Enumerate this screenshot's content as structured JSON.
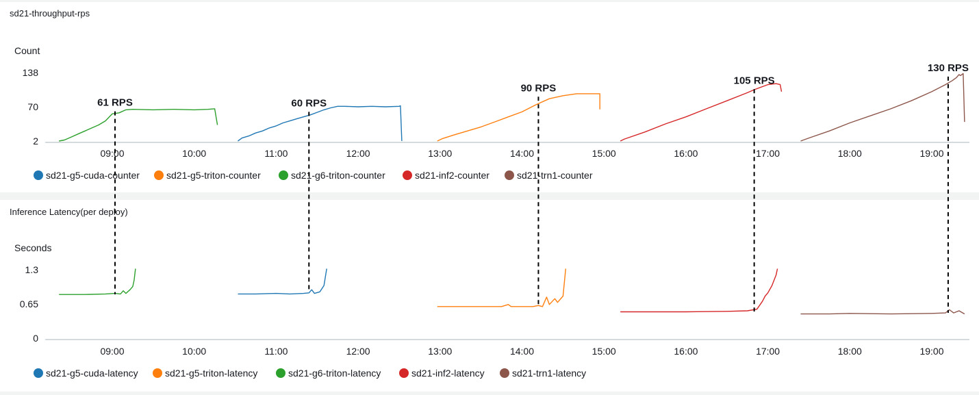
{
  "colors": {
    "sd21-g5-cuda": "#1f77b4",
    "sd21-g5-triton": "#ff7f0e",
    "sd21-g6-triton": "#2ca02c",
    "sd21-inf2": "#d62728",
    "sd21-trn1": "#8c564b"
  },
  "chart_data": [
    {
      "type": "line",
      "title": "sd21-throughput-rps",
      "ylabel": "Count",
      "yticks": [
        "138",
        "70",
        "2"
      ],
      "ylim": [
        2,
        138
      ],
      "xticks": [
        "09:00",
        "10:00",
        "11:00",
        "12:00",
        "13:00",
        "14:00",
        "15:00",
        "16:00",
        "17:00",
        "18:00",
        "19:00"
      ],
      "xlim": [
        "08:21",
        "19:24"
      ],
      "legend_position": "bottom-left",
      "grid": false,
      "series": [
        {
          "name": "sd21-g5-cuda-counter",
          "color_key": "sd21-g5-cuda",
          "points": [
            [
              "10:32",
              2
            ],
            [
              "10:35",
              8
            ],
            [
              "10:40",
              12
            ],
            [
              "10:45",
              18
            ],
            [
              "10:50",
              22
            ],
            [
              "10:55",
              28
            ],
            [
              "11:00",
              32
            ],
            [
              "11:05",
              38
            ],
            [
              "11:10",
              42
            ],
            [
              "11:15",
              46
            ],
            [
              "11:20",
              50
            ],
            [
              "11:25",
              54
            ],
            [
              "11:30",
              59
            ],
            [
              "11:35",
              64
            ],
            [
              "11:40",
              68
            ],
            [
              "11:45",
              71
            ],
            [
              "11:50",
              71
            ],
            [
              "12:00",
              70
            ],
            [
              "12:10",
              71
            ],
            [
              "12:20",
              70
            ],
            [
              "12:30",
              71
            ],
            [
              "12:31",
              72
            ],
            [
              "12:32",
              0
            ]
          ]
        },
        {
          "name": "sd21-g5-triton-counter",
          "color_key": "sd21-g5-triton",
          "points": [
            [
              "12:58",
              2
            ],
            [
              "13:02",
              7
            ],
            [
              "13:10",
              14
            ],
            [
              "13:20",
              22
            ],
            [
              "13:30",
              30
            ],
            [
              "13:40",
              40
            ],
            [
              "13:50",
              50
            ],
            [
              "14:00",
              60
            ],
            [
              "14:10",
              74
            ],
            [
              "14:20",
              86
            ],
            [
              "14:30",
              92
            ],
            [
              "14:40",
              96
            ],
            [
              "14:50",
              96
            ],
            [
              "14:57",
              96
            ],
            [
              "14:57",
              65
            ]
          ]
        },
        {
          "name": "sd21-g6-triton-counter",
          "color_key": "sd21-g6-triton",
          "points": [
            [
              "08:21",
              2
            ],
            [
              "08:25",
              4
            ],
            [
              "08:30",
              10
            ],
            [
              "08:35",
              16
            ],
            [
              "08:40",
              22
            ],
            [
              "08:45",
              28
            ],
            [
              "08:50",
              34
            ],
            [
              "08:55",
              42
            ],
            [
              "09:00",
              56
            ],
            [
              "09:05",
              58
            ],
            [
              "09:10",
              64
            ],
            [
              "09:15",
              65
            ],
            [
              "09:30",
              64
            ],
            [
              "09:45",
              65
            ],
            [
              "10:00",
              64
            ],
            [
              "10:10",
              65
            ],
            [
              "10:15",
              66
            ],
            [
              "10:17",
              34
            ]
          ]
        },
        {
          "name": "sd21-inf2-counter",
          "color_key": "sd21-inf2",
          "points": [
            [
              "15:12",
              2
            ],
            [
              "15:15",
              6
            ],
            [
              "15:30",
              20
            ],
            [
              "15:45",
              36
            ],
            [
              "16:00",
              50
            ],
            [
              "16:15",
              66
            ],
            [
              "16:30",
              82
            ],
            [
              "16:45",
              98
            ],
            [
              "16:50",
              104
            ],
            [
              "17:00",
              114
            ],
            [
              "17:06",
              116
            ],
            [
              "17:09",
              114
            ],
            [
              "17:10",
              100
            ]
          ]
        },
        {
          "name": "sd21-trn1-counter",
          "color_key": "sd21-trn1",
          "points": [
            [
              "17:24",
              2
            ],
            [
              "17:30",
              8
            ],
            [
              "17:45",
              22
            ],
            [
              "18:00",
              38
            ],
            [
              "18:15",
              52
            ],
            [
              "18:30",
              66
            ],
            [
              "18:45",
              82
            ],
            [
              "19:00",
              100
            ],
            [
              "19:10",
              114
            ],
            [
              "19:15",
              122
            ],
            [
              "19:18",
              128
            ],
            [
              "19:20",
              134
            ],
            [
              "19:21",
              132
            ],
            [
              "19:23",
              136
            ],
            [
              "19:24",
              40
            ]
          ]
        }
      ],
      "annotations": [
        {
          "text": "61 RPS",
          "x": "09:02",
          "y": 61
        },
        {
          "text": "60 RPS",
          "x": "11:24",
          "y": 60
        },
        {
          "text": "90 RPS",
          "x": "14:12",
          "y": 90
        },
        {
          "text": "105 RPS",
          "x": "16:50",
          "y": 105
        },
        {
          "text": "130 RPS",
          "x": "19:12",
          "y": 130
        }
      ]
    },
    {
      "type": "line",
      "title": "Inference Latency(per deploy)",
      "ylabel": "Seconds",
      "yticks": [
        "1.3",
        "0.65",
        "0"
      ],
      "ylim": [
        0,
        1.3
      ],
      "xticks": [
        "09:00",
        "10:00",
        "11:00",
        "12:00",
        "13:00",
        "14:00",
        "15:00",
        "16:00",
        "17:00",
        "18:00",
        "19:00"
      ],
      "xlim": [
        "08:21",
        "19:24"
      ],
      "legend_position": "bottom-left",
      "grid": false,
      "series": [
        {
          "name": "sd21-g5-cuda-latency",
          "color_key": "sd21-g5-cuda",
          "points": [
            [
              "10:32",
              0.84
            ],
            [
              "10:45",
              0.84
            ],
            [
              "11:00",
              0.85
            ],
            [
              "11:10",
              0.84
            ],
            [
              "11:20",
              0.85
            ],
            [
              "11:24",
              0.86
            ],
            [
              "11:26",
              0.92
            ],
            [
              "11:28",
              0.85
            ],
            [
              "11:32",
              0.88
            ],
            [
              "11:35",
              1.0
            ],
            [
              "11:37",
              1.32
            ]
          ]
        },
        {
          "name": "sd21-g5-triton-latency",
          "color_key": "sd21-g5-triton",
          "points": [
            [
              "12:58",
              0.6
            ],
            [
              "13:15",
              0.6
            ],
            [
              "13:30",
              0.6
            ],
            [
              "13:45",
              0.6
            ],
            [
              "13:50",
              0.64
            ],
            [
              "13:52",
              0.6
            ],
            [
              "14:00",
              0.6
            ],
            [
              "14:08",
              0.6
            ],
            [
              "14:12",
              0.62
            ],
            [
              "14:15",
              0.6
            ],
            [
              "14:18",
              0.78
            ],
            [
              "14:20",
              0.64
            ],
            [
              "14:24",
              0.75
            ],
            [
              "14:26",
              0.68
            ],
            [
              "14:30",
              0.8
            ],
            [
              "14:32",
              1.32
            ]
          ]
        },
        {
          "name": "sd21-g6-triton-latency",
          "color_key": "sd21-g6-triton",
          "points": [
            [
              "08:21",
              0.83
            ],
            [
              "08:40",
              0.83
            ],
            [
              "08:55",
              0.84
            ],
            [
              "09:02",
              0.85
            ],
            [
              "09:06",
              0.84
            ],
            [
              "09:08",
              0.9
            ],
            [
              "09:10",
              0.85
            ],
            [
              "09:13",
              0.92
            ],
            [
              "09:15",
              0.98
            ],
            [
              "09:16",
              1.1
            ],
            [
              "09:17",
              1.32
            ]
          ]
        },
        {
          "name": "sd21-inf2-latency",
          "color_key": "sd21-inf2",
          "points": [
            [
              "15:12",
              0.5
            ],
            [
              "15:30",
              0.5
            ],
            [
              "16:00",
              0.5
            ],
            [
              "16:30",
              0.51
            ],
            [
              "16:45",
              0.52
            ],
            [
              "16:52",
              0.55
            ],
            [
              "16:56",
              0.7
            ],
            [
              "16:58",
              0.8
            ],
            [
              "17:00",
              0.86
            ],
            [
              "17:03",
              1.0
            ],
            [
              "17:06",
              1.2
            ],
            [
              "17:07",
              1.32
            ]
          ]
        },
        {
          "name": "sd21-trn1-latency",
          "color_key": "sd21-trn1",
          "points": [
            [
              "17:24",
              0.46
            ],
            [
              "17:45",
              0.46
            ],
            [
              "18:00",
              0.47
            ],
            [
              "18:30",
              0.46
            ],
            [
              "19:00",
              0.47
            ],
            [
              "19:10",
              0.48
            ],
            [
              "19:13",
              0.54
            ],
            [
              "19:16",
              0.48
            ],
            [
              "19:20",
              0.52
            ],
            [
              "19:24",
              0.46
            ]
          ]
        }
      ]
    }
  ]
}
